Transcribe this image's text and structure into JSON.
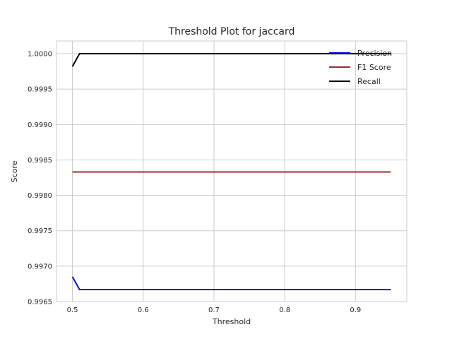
{
  "chart_data": {
    "type": "line",
    "title": "Threshold Plot for jaccard",
    "xlabel": "Threshold",
    "ylabel": "Score",
    "xlim": [
      0.4775,
      0.9725
    ],
    "ylim": [
      0.9965,
      1.00018
    ],
    "grid": true,
    "legend_position": "top-right",
    "xticks": [
      0.5,
      0.6,
      0.7,
      0.8,
      0.9
    ],
    "xtick_labels": [
      "0.5",
      "0.6",
      "0.7",
      "0.8",
      "0.9"
    ],
    "yticks": [
      0.9965,
      0.997,
      0.9975,
      0.998,
      0.9985,
      0.999,
      0.9995,
      1.0
    ],
    "ytick_labels": [
      "0.9965",
      "0.9970",
      "0.9975",
      "0.9980",
      "0.9985",
      "0.9990",
      "0.9995",
      "1.0000"
    ],
    "x": [
      0.5,
      0.51,
      0.52,
      0.53,
      0.54,
      0.55,
      0.56,
      0.57,
      0.58,
      0.59,
      0.6,
      0.61,
      0.62,
      0.63,
      0.64,
      0.65,
      0.66,
      0.67,
      0.68,
      0.69,
      0.7,
      0.71,
      0.72,
      0.73,
      0.74,
      0.75,
      0.76,
      0.77,
      0.78,
      0.79,
      0.8,
      0.81,
      0.82,
      0.83,
      0.84,
      0.85,
      0.86,
      0.87,
      0.88,
      0.89,
      0.9,
      0.91,
      0.92,
      0.93,
      0.94,
      0.95
    ],
    "series": [
      {
        "name": "Precision",
        "color": "#0000ff",
        "values": [
          0.99685,
          0.99667,
          0.99667,
          0.99667,
          0.99667,
          0.99667,
          0.99667,
          0.99667,
          0.99667,
          0.99667,
          0.99667,
          0.99667,
          0.99667,
          0.99667,
          0.99667,
          0.99667,
          0.99667,
          0.99667,
          0.99667,
          0.99667,
          0.99667,
          0.99667,
          0.99667,
          0.99667,
          0.99667,
          0.99667,
          0.99667,
          0.99667,
          0.99667,
          0.99667,
          0.99667,
          0.99667,
          0.99667,
          0.99667,
          0.99667,
          0.99667,
          0.99667,
          0.99667,
          0.99667,
          0.99667,
          0.99667,
          0.99667,
          0.99667,
          0.99667,
          0.99667,
          0.99667
        ]
      },
      {
        "name": "F1 Score",
        "color": "#a52a2a",
        "values": [
          0.99833,
          0.99833,
          0.99833,
          0.99833,
          0.99833,
          0.99833,
          0.99833,
          0.99833,
          0.99833,
          0.99833,
          0.99833,
          0.99833,
          0.99833,
          0.99833,
          0.99833,
          0.99833,
          0.99833,
          0.99833,
          0.99833,
          0.99833,
          0.99833,
          0.99833,
          0.99833,
          0.99833,
          0.99833,
          0.99833,
          0.99833,
          0.99833,
          0.99833,
          0.99833,
          0.99833,
          0.99833,
          0.99833,
          0.99833,
          0.99833,
          0.99833,
          0.99833,
          0.99833,
          0.99833,
          0.99833,
          0.99833,
          0.99833,
          0.99833,
          0.99833,
          0.99833,
          0.99833
        ]
      },
      {
        "name": "Recall",
        "color": "#000000",
        "values": [
          0.99982,
          1.0,
          1.0,
          1.0,
          1.0,
          1.0,
          1.0,
          1.0,
          1.0,
          1.0,
          1.0,
          1.0,
          1.0,
          1.0,
          1.0,
          1.0,
          1.0,
          1.0,
          1.0,
          1.0,
          1.0,
          1.0,
          1.0,
          1.0,
          1.0,
          1.0,
          1.0,
          1.0,
          1.0,
          1.0,
          1.0,
          1.0,
          1.0,
          1.0,
          1.0,
          1.0,
          1.0,
          1.0,
          1.0,
          1.0,
          1.0,
          1.0,
          1.0,
          1.0,
          1.0,
          1.0
        ]
      }
    ]
  },
  "colors": {
    "grid": "#cccccc",
    "frame": "#cccccc",
    "background": "#ffffff"
  }
}
